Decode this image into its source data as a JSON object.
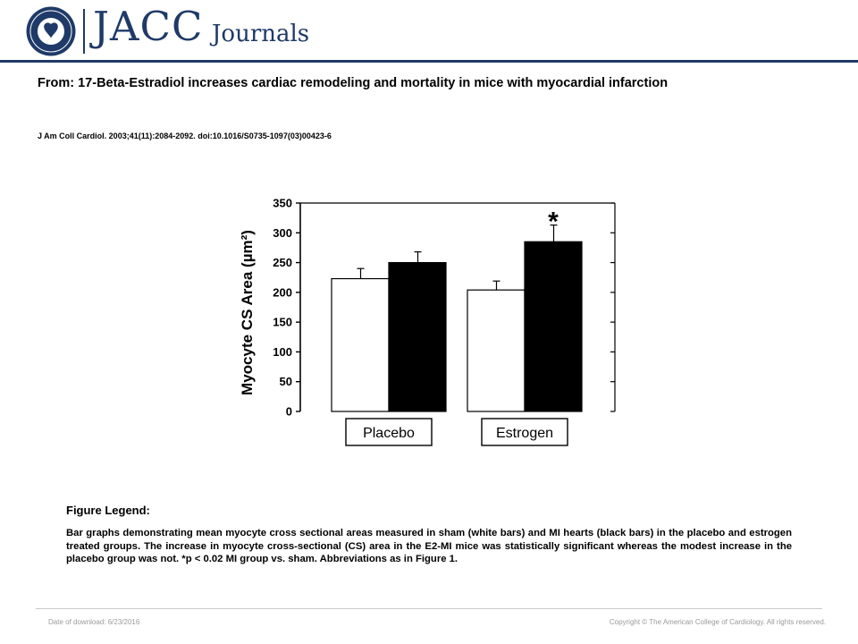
{
  "header": {
    "logo_main": "JACC",
    "logo_sub": "Journals",
    "seal_text": "AMERICAN COLLEGE OF CARDIOLOGY"
  },
  "article": {
    "title": "From: 17-Beta-Estradiol increases cardiac remodeling and mortality in mice with myocardial infarction",
    "citation": "J Am Coll Cardiol. 2003;41(11):2084-2092. doi:10.1016/S0735-1097(03)00423-6"
  },
  "chart_data": {
    "type": "bar",
    "ylabel": "Myocyte CS Area (µm²)",
    "ylim": [
      0,
      350
    ],
    "yticks": [
      0,
      50,
      100,
      150,
      200,
      250,
      300,
      350
    ],
    "categories": [
      "Placebo",
      "Estrogen"
    ],
    "series": [
      {
        "values": [
          223,
          204
        ],
        "errors": [
          17,
          15
        ],
        "color": "#ffffff"
      },
      {
        "values": [
          250,
          285
        ],
        "errors": [
          18,
          28
        ],
        "color": "#000000"
      }
    ],
    "annotations": [
      {
        "text": "*",
        "category": "Estrogen",
        "series": 1
      }
    ]
  },
  "legend": {
    "heading": "Figure Legend:",
    "body": "Bar graphs demonstrating mean myocyte cross sectional areas measured in sham (white bars) and MI hearts (black bars) in the placebo and estrogen treated groups. The increase in myocyte cross-sectional (CS) area in the E2-MI mice was statistically significant whereas the modest increase in the placebo group was not. *p < 0.02 MI group vs. sham. Abbreviations as in Figure 1."
  },
  "footer": {
    "date": "Date of download: 6/23/2016",
    "copyright": "Copyright © The American College of Cardiology. All rights reserved."
  },
  "colors": {
    "brand": "#1f3a68",
    "footer_text": "#9a9a9a"
  }
}
